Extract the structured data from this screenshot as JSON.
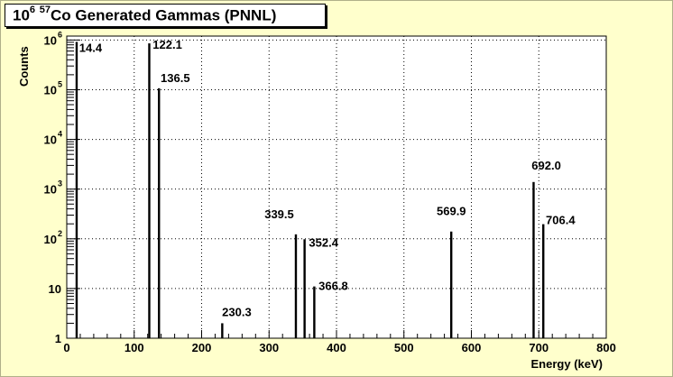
{
  "chart_data": {
    "type": "bar",
    "title": {
      "base": "10",
      "exp": "6",
      "iso_sup": "57",
      "rest": "Co Generated Gammas (PNNL)"
    },
    "xlabel": "Energy (keV)",
    "ylabel": "Counts",
    "xlim": [
      0,
      800
    ],
    "ylim": [
      1,
      1200000
    ],
    "yscale": "log",
    "grid": true,
    "legend": "none",
    "xticks": [
      0,
      100,
      200,
      300,
      400,
      500,
      600,
      700,
      800
    ],
    "xtick_labels": [
      "0",
      "100",
      "200",
      "300",
      "400",
      "500",
      "600",
      "700",
      "800"
    ],
    "yticks": [
      {
        "value": 1,
        "label": "1"
      },
      {
        "value": 10,
        "label": "10"
      },
      {
        "value": 100,
        "label": "10",
        "exp": "2"
      },
      {
        "value": 1000,
        "label": "10",
        "exp": "3"
      },
      {
        "value": 10000,
        "label": "10",
        "exp": "4"
      },
      {
        "value": 100000,
        "label": "10",
        "exp": "5"
      },
      {
        "value": 1000000,
        "label": "10",
        "exp": "6"
      }
    ],
    "peaks": [
      {
        "energy": 14.4,
        "label": "14.4",
        "counts": 916000
      },
      {
        "energy": 122.1,
        "label": "122.1",
        "counts": 856000
      },
      {
        "energy": 136.5,
        "label": "136.5",
        "counts": 107000
      },
      {
        "energy": 230.3,
        "label": "230.3",
        "counts": 2
      },
      {
        "energy": 339.5,
        "label": "339.5",
        "counts": 123
      },
      {
        "energy": 352.4,
        "label": "352.4",
        "counts": 98
      },
      {
        "energy": 366.8,
        "label": "366.8",
        "counts": 11
      },
      {
        "energy": 569.9,
        "label": "569.9",
        "counts": 140
      },
      {
        "energy": 692.0,
        "label": "692.0",
        "counts": 1390
      },
      {
        "energy": 706.4,
        "label": "706.4",
        "counts": 197
      }
    ],
    "colors": {
      "bars": "#000000",
      "grid": "#000000",
      "background": "#ffffcc",
      "plot_area": "#ffffff"
    }
  }
}
